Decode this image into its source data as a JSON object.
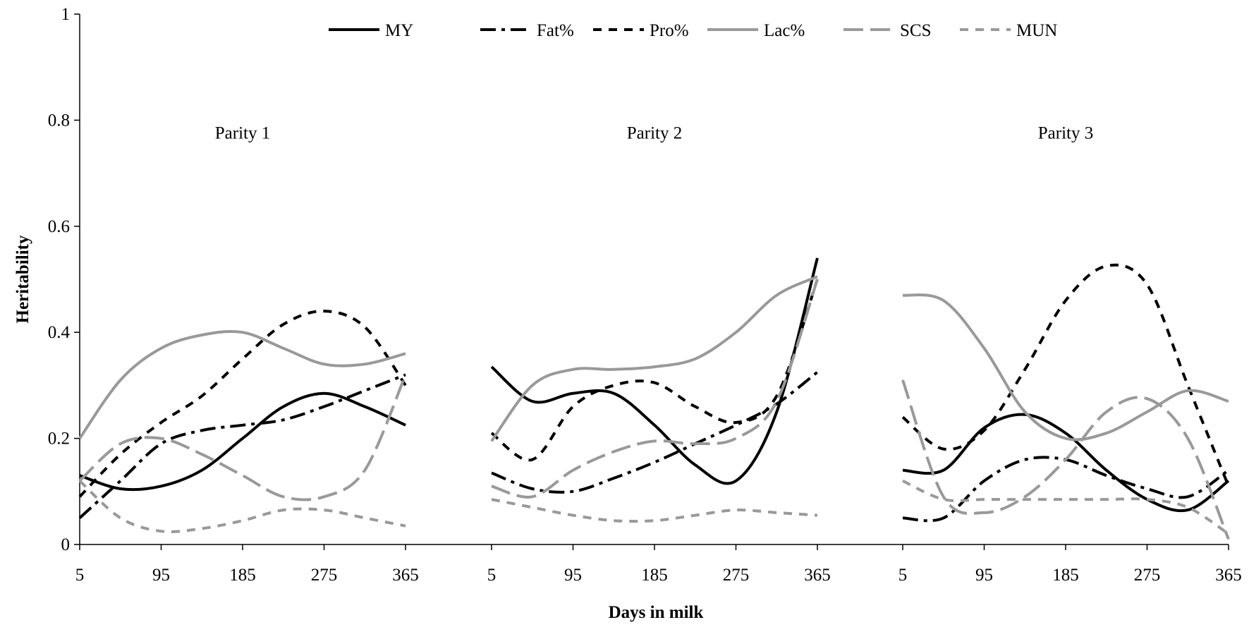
{
  "chart_data": {
    "type": "line",
    "xlabel": "Days in milk",
    "ylabel": "Heritability",
    "ylim": [
      0,
      1
    ],
    "yticks": [
      0,
      0.2,
      0.4,
      0.6,
      0.8,
      1
    ],
    "ytick_labels": [
      "0",
      "0.2",
      "0.4",
      "0.6",
      "0.8",
      "1"
    ],
    "xlim": [
      5,
      365
    ],
    "xticks": [
      5,
      95,
      185,
      275,
      365
    ],
    "xtick_labels": [
      "5",
      "95",
      "185",
      "275",
      "365"
    ],
    "grid": false,
    "legend_position": "top-center",
    "legend": [
      {
        "name": "MY",
        "color": "#000000",
        "dash": "solid"
      },
      {
        "name": "Fat%",
        "color": "#000000",
        "dash": "dashdot"
      },
      {
        "name": "Pro%",
        "color": "#000000",
        "dash": "dash"
      },
      {
        "name": "Lac%",
        "color": "#999999",
        "dash": "solid"
      },
      {
        "name": "SCS",
        "color": "#999999",
        "dash": "longdash"
      },
      {
        "name": "MUN",
        "color": "#999999",
        "dash": "dash"
      }
    ],
    "panels": [
      {
        "label": "Parity 1",
        "series": [
          {
            "name": "MY",
            "x": [
              5,
              50,
              95,
              140,
              185,
              230,
              275,
              320,
              365
            ],
            "y": [
              0.13,
              0.105,
              0.11,
              0.14,
              0.2,
              0.26,
              0.285,
              0.26,
              0.225
            ]
          },
          {
            "name": "Fat%",
            "x": [
              5,
              50,
              95,
              140,
              185,
              230,
              275,
              320,
              365
            ],
            "y": [
              0.05,
              0.12,
              0.19,
              0.215,
              0.225,
              0.235,
              0.26,
              0.29,
              0.32
            ]
          },
          {
            "name": "Pro%",
            "x": [
              5,
              50,
              95,
              140,
              185,
              230,
              275,
              320,
              365
            ],
            "y": [
              0.09,
              0.17,
              0.23,
              0.28,
              0.35,
              0.415,
              0.44,
              0.41,
              0.3
            ]
          },
          {
            "name": "Lac%",
            "x": [
              5,
              50,
              95,
              140,
              185,
              230,
              275,
              320,
              365
            ],
            "y": [
              0.2,
              0.31,
              0.37,
              0.395,
              0.4,
              0.37,
              0.34,
              0.34,
              0.36
            ]
          },
          {
            "name": "SCS",
            "x": [
              5,
              50,
              95,
              140,
              185,
              230,
              275,
              320,
              365
            ],
            "y": [
              0.12,
              0.19,
              0.2,
              0.17,
              0.13,
              0.09,
              0.09,
              0.14,
              0.32
            ]
          },
          {
            "name": "MUN",
            "x": [
              5,
              50,
              95,
              140,
              185,
              230,
              275,
              320,
              365
            ],
            "y": [
              0.12,
              0.05,
              0.025,
              0.03,
              0.045,
              0.065,
              0.065,
              0.05,
              0.035
            ]
          }
        ]
      },
      {
        "label": "Parity 2",
        "series": [
          {
            "name": "MY",
            "x": [
              5,
              50,
              95,
              140,
              185,
              230,
              275,
              320,
              365
            ],
            "y": [
              0.335,
              0.27,
              0.285,
              0.285,
              0.225,
              0.15,
              0.12,
              0.25,
              0.54
            ]
          },
          {
            "name": "Fat%",
            "x": [
              5,
              50,
              95,
              140,
              185,
              230,
              275,
              320,
              365
            ],
            "y": [
              0.135,
              0.105,
              0.1,
              0.125,
              0.155,
              0.19,
              0.225,
              0.265,
              0.325
            ]
          },
          {
            "name": "Pro%",
            "x": [
              5,
              50,
              95,
              140,
              185,
              230,
              275,
              320,
              365
            ],
            "y": [
              0.21,
              0.16,
              0.26,
              0.3,
              0.305,
              0.26,
              0.23,
              0.28,
              0.5
            ]
          },
          {
            "name": "Lac%",
            "x": [
              5,
              50,
              95,
              140,
              185,
              230,
              275,
              320,
              365
            ],
            "y": [
              0.195,
              0.3,
              0.33,
              0.33,
              0.335,
              0.35,
              0.4,
              0.47,
              0.505
            ]
          },
          {
            "name": "SCS",
            "x": [
              5,
              50,
              95,
              140,
              185,
              230,
              275,
              320,
              365
            ],
            "y": [
              0.11,
              0.09,
              0.14,
              0.175,
              0.195,
              0.19,
              0.2,
              0.27,
              0.5
            ]
          },
          {
            "name": "MUN",
            "x": [
              5,
              50,
              95,
              140,
              185,
              230,
              275,
              320,
              365
            ],
            "y": [
              0.085,
              0.07,
              0.055,
              0.045,
              0.045,
              0.055,
              0.065,
              0.06,
              0.055
            ]
          }
        ]
      },
      {
        "label": "Parity 3",
        "series": [
          {
            "name": "MY",
            "x": [
              5,
              50,
              95,
              140,
              185,
              230,
              275,
              320,
              365
            ],
            "y": [
              0.14,
              0.14,
              0.22,
              0.245,
              0.21,
              0.14,
              0.085,
              0.065,
              0.12
            ]
          },
          {
            "name": "Fat%",
            "x": [
              5,
              50,
              95,
              140,
              185,
              230,
              275,
              320,
              365
            ],
            "y": [
              0.05,
              0.05,
              0.12,
              0.16,
              0.16,
              0.13,
              0.105,
              0.09,
              0.14
            ]
          },
          {
            "name": "Pro%",
            "x": [
              5,
              50,
              95,
              140,
              185,
              230,
              275,
              320,
              365
            ],
            "y": [
              0.24,
              0.18,
              0.215,
              0.33,
              0.46,
              0.525,
              0.49,
              0.3,
              0.11
            ]
          },
          {
            "name": "Lac%",
            "x": [
              5,
              50,
              95,
              140,
              185,
              230,
              275,
              320,
              365
            ],
            "y": [
              0.47,
              0.46,
              0.37,
              0.25,
              0.2,
              0.21,
              0.25,
              0.29,
              0.27
            ]
          },
          {
            "name": "SCS",
            "x": [
              5,
              50,
              95,
              140,
              185,
              230,
              275,
              320,
              365
            ],
            "y": [
              0.31,
              0.09,
              0.06,
              0.09,
              0.16,
              0.25,
              0.275,
              0.2,
              0.01
            ]
          },
          {
            "name": "MUN",
            "x": [
              5,
              50,
              95,
              140,
              185,
              230,
              275,
              320,
              365
            ],
            "y": [
              0.12,
              0.085,
              0.085,
              0.085,
              0.085,
              0.085,
              0.085,
              0.07,
              0.02
            ]
          }
        ]
      }
    ]
  }
}
